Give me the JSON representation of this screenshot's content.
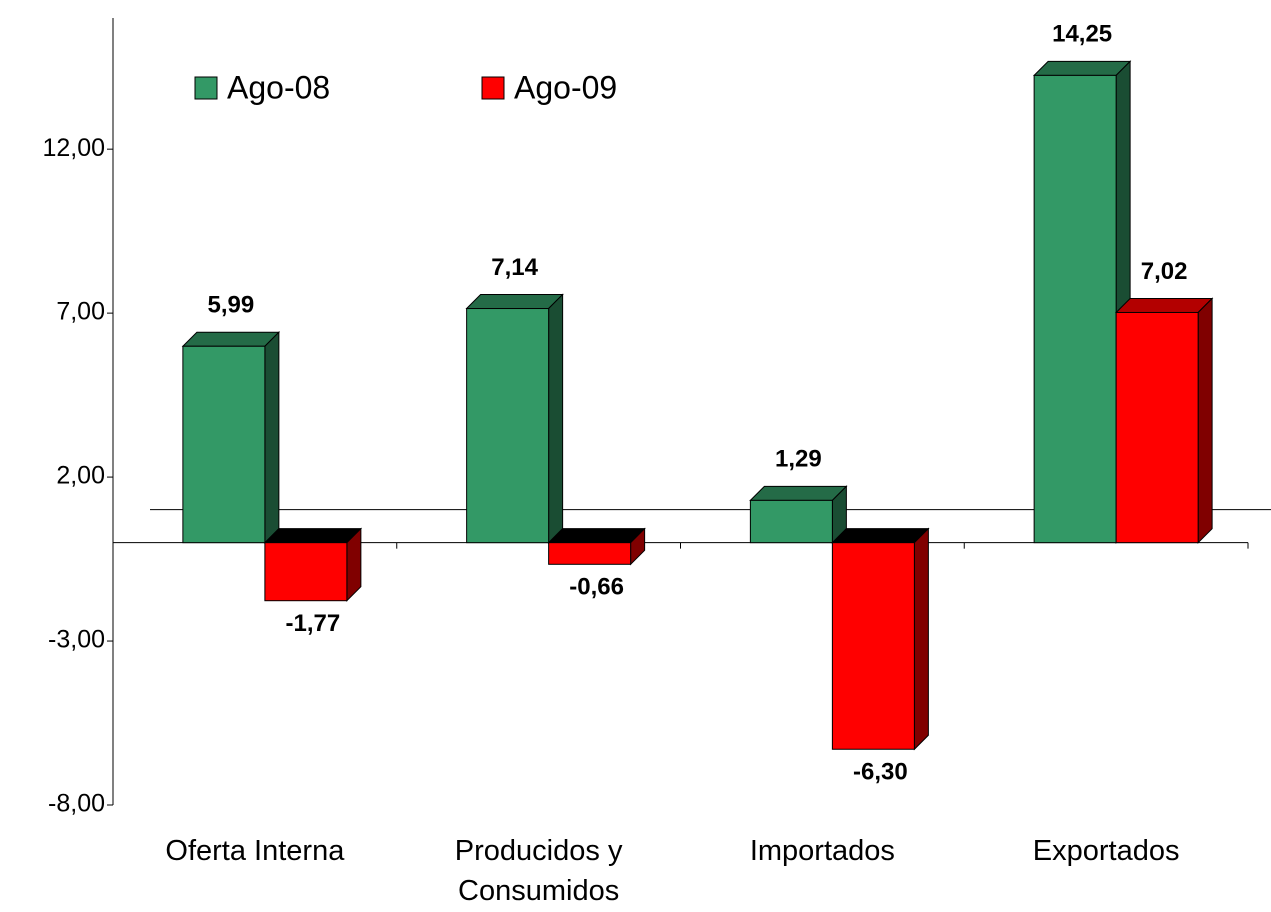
{
  "chart_data": {
    "type": "bar3d",
    "categories": [
      "Oferta Interna",
      "Producidos y Consumidos",
      "Importados",
      "Exportados"
    ],
    "series": [
      {
        "name": "Ago-08",
        "color": "#339966",
        "values": [
          5.99,
          7.14,
          1.29,
          14.25
        ],
        "value_labels": [
          "5,99",
          "7,14",
          "1,29",
          "14,25"
        ]
      },
      {
        "name": "Ago-09",
        "color": "#ff0000",
        "values": [
          -1.77,
          -0.66,
          -6.3,
          7.02
        ],
        "value_labels": [
          "-1,77",
          "-0,66",
          "-6,30",
          "7,02"
        ]
      }
    ],
    "ylim": [
      -8,
      16
    ],
    "yticks": [
      {
        "value": -8,
        "label": "-8,00"
      },
      {
        "value": -3,
        "label": "-3,00"
      },
      {
        "value": 2,
        "label": "2,00"
      },
      {
        "value": 7,
        "label": "7,00"
      },
      {
        "value": 12,
        "label": "12,00"
      }
    ],
    "legend": "top-left"
  }
}
